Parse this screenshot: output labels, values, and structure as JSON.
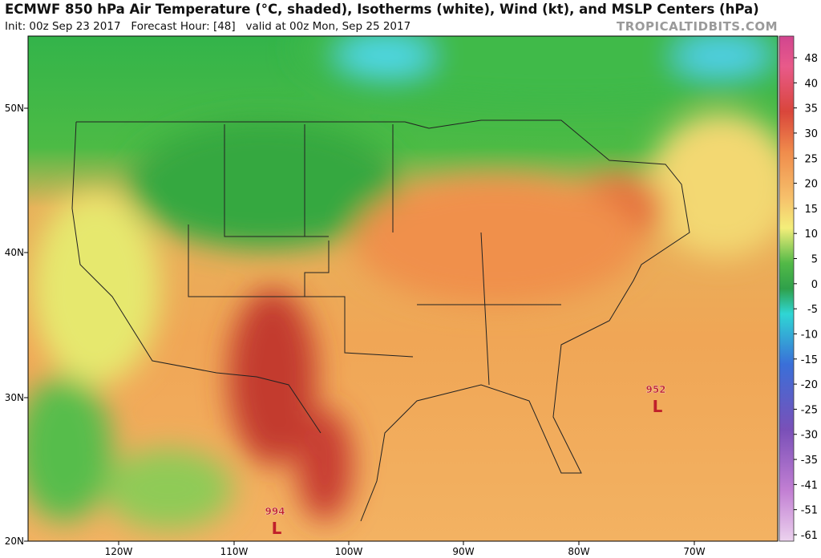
{
  "header": {
    "title": "ECMWF 850 hPa Air Temperature (°C, shaded), Isotherms (white), Wind (kt), and MSLP Centers (hPa)",
    "subtitle": "Init: 00z Sep 23 2017   Forecast Hour: [48]   valid at 00z Mon, Sep 25 2017",
    "watermark": "TROPICALTIDBITS.COM"
  },
  "map": {
    "latitude_labels": [
      "50N",
      "40N",
      "30N",
      "20N"
    ],
    "longitude_labels": [
      "120W",
      "110W",
      "100W",
      "90W",
      "80W",
      "70W"
    ],
    "pressure_centers": [
      {
        "value": 952,
        "symbol": "L"
      },
      {
        "value": 994,
        "symbol": "L"
      }
    ]
  },
  "colorbar": {
    "labels": [
      48,
      40,
      35,
      30,
      25,
      20,
      15,
      10,
      5,
      0,
      -5,
      -10,
      -15,
      -20,
      -25,
      -30,
      -35,
      -41,
      -51,
      -61
    ]
  }
}
